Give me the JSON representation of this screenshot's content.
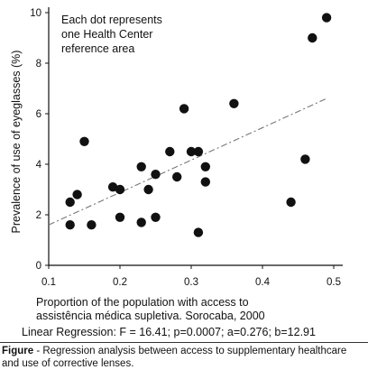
{
  "chart_data": {
    "type": "scatter",
    "annotation_lines": [
      "Each dot represents",
      "one Health Center",
      "reference area"
    ],
    "ylabel": "Prevalence of use of eyeglasses (%)",
    "xlabel_lines": [
      "Proportion of the population with access to",
      "assistência médica supletiva. Sorocaba, 2000"
    ],
    "xlim": [
      0.1,
      0.5
    ],
    "ylim": [
      0,
      10
    ],
    "x_ticks": [
      "0.1",
      "0.2",
      "0.3",
      "0.4",
      "0.5"
    ],
    "x_tick_values": [
      0.1,
      0.2,
      0.3,
      0.4,
      0.5
    ],
    "y_ticks": [
      "0",
      "2",
      "4",
      "6",
      "8",
      "10"
    ],
    "y_tick_values": [
      0,
      2,
      4,
      6,
      8,
      10
    ],
    "points": [
      {
        "x": 0.13,
        "y": 2.5
      },
      {
        "x": 0.13,
        "y": 1.6
      },
      {
        "x": 0.14,
        "y": 2.8
      },
      {
        "x": 0.15,
        "y": 4.9
      },
      {
        "x": 0.16,
        "y": 1.6
      },
      {
        "x": 0.19,
        "y": 3.1
      },
      {
        "x": 0.2,
        "y": 3.0
      },
      {
        "x": 0.2,
        "y": 1.9
      },
      {
        "x": 0.23,
        "y": 3.9
      },
      {
        "x": 0.23,
        "y": 1.7
      },
      {
        "x": 0.24,
        "y": 3.0
      },
      {
        "x": 0.25,
        "y": 3.6
      },
      {
        "x": 0.25,
        "y": 1.9
      },
      {
        "x": 0.27,
        "y": 4.5
      },
      {
        "x": 0.28,
        "y": 3.5
      },
      {
        "x": 0.29,
        "y": 6.2
      },
      {
        "x": 0.3,
        "y": 4.5
      },
      {
        "x": 0.31,
        "y": 4.5
      },
      {
        "x": 0.31,
        "y": 1.3
      },
      {
        "x": 0.32,
        "y": 3.9
      },
      {
        "x": 0.32,
        "y": 3.3
      },
      {
        "x": 0.36,
        "y": 6.4
      },
      {
        "x": 0.44,
        "y": 2.5
      },
      {
        "x": 0.46,
        "y": 4.2
      },
      {
        "x": 0.47,
        "y": 9.0
      },
      {
        "x": 0.49,
        "y": 9.8
      }
    ],
    "regression_line": {
      "x": [
        0.1,
        0.49
      ],
      "y": [
        1.6,
        6.6
      ]
    },
    "regression_text": "Linear Regression: F = 16.41; p=0.0007; a=0.276; b=12.91",
    "grid": false,
    "marker_color": "#111111",
    "line_color": "#777777"
  },
  "caption": {
    "label": "Figure",
    "text": " - Regression analysis between access to supplementary healthcare and use of corrective lenses."
  }
}
